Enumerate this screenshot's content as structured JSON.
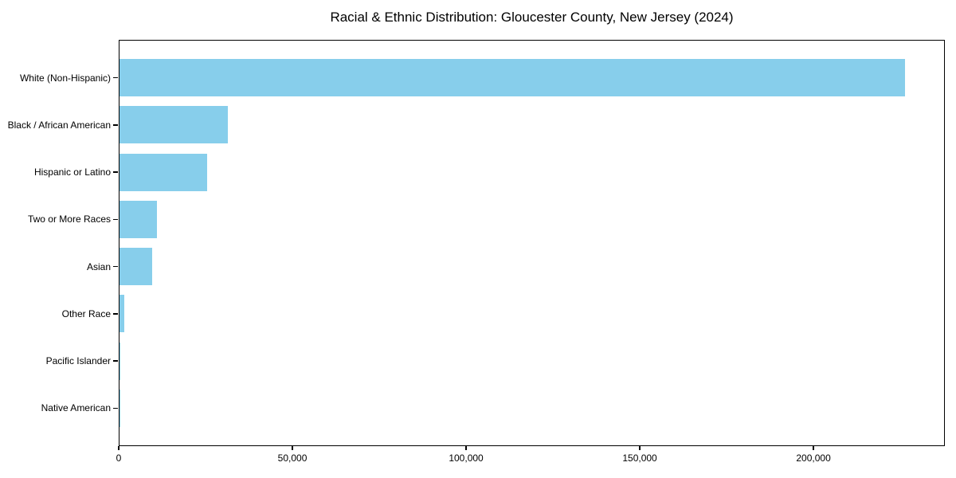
{
  "chart_data": {
    "type": "bar",
    "orientation": "horizontal",
    "title": "Racial & Ethnic Distribution: Gloucester County, New Jersey (2024)",
    "categories": [
      "White (Non-Hispanic)",
      "Black / African American",
      "Hispanic or Latino",
      "Two or More Races",
      "Asian",
      "Other Race",
      "Pacific Islander",
      "Native American"
    ],
    "values": [
      226500,
      31200,
      25200,
      10800,
      9400,
      1400,
      200,
      100
    ],
    "xlabel": "",
    "ylabel": "",
    "xlim": [
      0,
      237825
    ],
    "xticks": [
      0,
      50000,
      100000,
      150000,
      200000
    ],
    "xtick_labels": [
      "0",
      "50,000",
      "100,000",
      "150,000",
      "200,000"
    ],
    "bar_color": "#87CEEB",
    "axis_color": "#000000",
    "background_color": "#ffffff",
    "grid": false,
    "legend": null
  }
}
